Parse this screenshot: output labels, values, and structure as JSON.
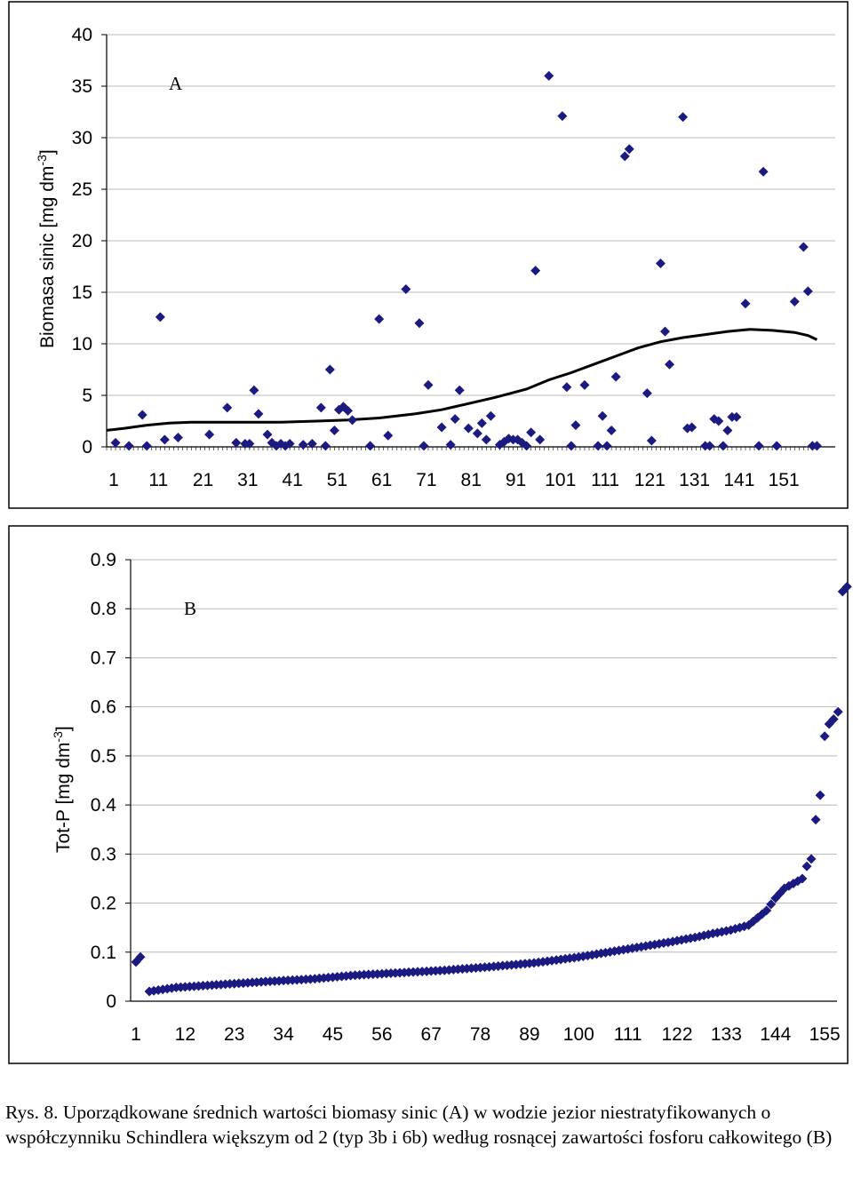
{
  "chart_data": [
    {
      "panel": "A",
      "type": "scatter",
      "ylabel": "Biomasa sinic [mg dm",
      "ylabel_sup": "-3",
      "ylabel_end": "]",
      "ylim": [
        0,
        40
      ],
      "yticks": [
        0,
        5,
        10,
        15,
        20,
        25,
        30,
        35,
        40
      ],
      "xlim": [
        1,
        157
      ],
      "xticks": [
        1,
        11,
        21,
        31,
        41,
        51,
        61,
        71,
        81,
        91,
        101,
        111,
        121,
        131,
        141,
        151
      ],
      "grid": true,
      "point_color": "#1a1a80",
      "line_color": "#000000",
      "points": [
        [
          3,
          0.4
        ],
        [
          6,
          0.1
        ],
        [
          9,
          3.1
        ],
        [
          10,
          0.1
        ],
        [
          13,
          12.6
        ],
        [
          14,
          0.7
        ],
        [
          17,
          0.9
        ],
        [
          24,
          1.2
        ],
        [
          28,
          3.8
        ],
        [
          30,
          0.4
        ],
        [
          32,
          0.3
        ],
        [
          33,
          0.3
        ],
        [
          34,
          5.5
        ],
        [
          35,
          3.2
        ],
        [
          37,
          1.2
        ],
        [
          38,
          0.4
        ],
        [
          39,
          0.1
        ],
        [
          40,
          0.3
        ],
        [
          41,
          0.1
        ],
        [
          42,
          0.3
        ],
        [
          45,
          0.2
        ],
        [
          47,
          0.3
        ],
        [
          49,
          3.8
        ],
        [
          50,
          0.1
        ],
        [
          51,
          7.5
        ],
        [
          52,
          1.6
        ],
        [
          53,
          3.6
        ],
        [
          54,
          3.9
        ],
        [
          55,
          3.5
        ],
        [
          56,
          2.6
        ],
        [
          60,
          0.1
        ],
        [
          62,
          12.4
        ],
        [
          64,
          1.1
        ],
        [
          68,
          15.3
        ],
        [
          71,
          12.0
        ],
        [
          72,
          0.1
        ],
        [
          73,
          6.0
        ],
        [
          76,
          1.9
        ],
        [
          78,
          0.2
        ],
        [
          79,
          2.7
        ],
        [
          80,
          5.5
        ],
        [
          82,
          1.8
        ],
        [
          84,
          1.3
        ],
        [
          85,
          2.3
        ],
        [
          86,
          0.7
        ],
        [
          87,
          3.0
        ],
        [
          89,
          0.2
        ],
        [
          90,
          0.5
        ],
        [
          91,
          0.8
        ],
        [
          92,
          0.7
        ],
        [
          93,
          0.7
        ],
        [
          94,
          0.4
        ],
        [
          95,
          0.1
        ],
        [
          96,
          1.4
        ],
        [
          97,
          17.1
        ],
        [
          98,
          0.7
        ],
        [
          100,
          36.0
        ],
        [
          103,
          32.1
        ],
        [
          104,
          5.8
        ],
        [
          105,
          0.1
        ],
        [
          106,
          2.1
        ],
        [
          108,
          6.0
        ],
        [
          111,
          0.1
        ],
        [
          112,
          3.0
        ],
        [
          113,
          0.1
        ],
        [
          114,
          1.6
        ],
        [
          115,
          6.8
        ],
        [
          117,
          28.2
        ],
        [
          118,
          28.9
        ],
        [
          122,
          5.2
        ],
        [
          123,
          0.6
        ],
        [
          125,
          17.8
        ],
        [
          126,
          11.2
        ],
        [
          127,
          8.0
        ],
        [
          130,
          32.0
        ],
        [
          131,
          1.8
        ],
        [
          132,
          1.9
        ],
        [
          135,
          0.1
        ],
        [
          136,
          0.1
        ],
        [
          137,
          2.7
        ],
        [
          138,
          2.5
        ],
        [
          139,
          0.1
        ],
        [
          140,
          1.6
        ],
        [
          141,
          2.9
        ],
        [
          142,
          2.9
        ],
        [
          144,
          13.9
        ],
        [
          147,
          0.1
        ],
        [
          148,
          26.7
        ],
        [
          151,
          0.1
        ],
        [
          155,
          14.1
        ],
        [
          157,
          19.4
        ],
        [
          158,
          15.1
        ],
        [
          159,
          0.1
        ],
        [
          160,
          0.1
        ]
      ],
      "trend": [
        [
          1,
          1.6
        ],
        [
          5,
          1.8
        ],
        [
          10,
          2.1
        ],
        [
          15,
          2.3
        ],
        [
          20,
          2.4
        ],
        [
          30,
          2.4
        ],
        [
          40,
          2.4
        ],
        [
          48,
          2.5
        ],
        [
          55,
          2.6
        ],
        [
          62,
          2.8
        ],
        [
          70,
          3.2
        ],
        [
          76,
          3.6
        ],
        [
          82,
          4.2
        ],
        [
          88,
          4.8
        ],
        [
          95,
          5.6
        ],
        [
          100,
          6.5
        ],
        [
          105,
          7.2
        ],
        [
          110,
          8.0
        ],
        [
          115,
          8.8
        ],
        [
          120,
          9.6
        ],
        [
          125,
          10.2
        ],
        [
          130,
          10.6
        ],
        [
          135,
          10.9
        ],
        [
          140,
          11.2
        ],
        [
          145,
          11.4
        ],
        [
          150,
          11.3
        ],
        [
          155,
          11.1
        ],
        [
          158,
          10.8
        ],
        [
          160,
          10.4
        ]
      ]
    },
    {
      "panel": "B",
      "type": "scatter",
      "ylabel": "Tot-P [mg dm",
      "ylabel_sup": "-3",
      "ylabel_end": "]",
      "ylim": [
        0,
        0.9
      ],
      "yticks": [
        0,
        0.1,
        0.2,
        0.3,
        0.4,
        0.5,
        0.6,
        0.7,
        0.8,
        0.9
      ],
      "ytick_labels": [
        "0",
        "0.1",
        "0.2",
        "0.3",
        "0.4",
        "0.5",
        "0.6",
        "0.7",
        "0.8",
        "0.9"
      ],
      "xlim": [
        1,
        155
      ],
      "xticks": [
        1,
        12,
        23,
        34,
        45,
        56,
        67,
        78,
        89,
        100,
        111,
        122,
        133,
        144,
        155
      ],
      "grid": true,
      "point_color": "#1a1a80",
      "curve_anchors": [
        [
          1,
          0.08
        ],
        [
          2,
          0.09
        ],
        [
          4,
          0.02
        ],
        [
          10,
          0.028
        ],
        [
          20,
          0.034
        ],
        [
          30,
          0.04
        ],
        [
          40,
          0.045
        ],
        [
          50,
          0.053
        ],
        [
          60,
          0.058
        ],
        [
          70,
          0.063
        ],
        [
          80,
          0.07
        ],
        [
          90,
          0.078
        ],
        [
          100,
          0.09
        ],
        [
          110,
          0.105
        ],
        [
          120,
          0.12
        ],
        [
          126,
          0.13
        ],
        [
          130,
          0.138
        ],
        [
          134,
          0.145
        ],
        [
          138,
          0.155
        ],
        [
          140,
          0.17
        ],
        [
          142,
          0.185
        ],
        [
          144,
          0.21
        ],
        [
          146,
          0.23
        ],
        [
          148,
          0.24
        ],
        [
          150,
          0.25
        ],
        [
          151,
          0.275
        ],
        [
          152,
          0.29
        ],
        [
          153,
          0.37
        ],
        [
          154,
          0.42
        ],
        [
          155,
          0.54
        ],
        [
          156,
          0.565
        ],
        [
          157,
          0.575
        ],
        [
          158,
          0.59
        ],
        [
          159,
          0.835
        ],
        [
          160,
          0.845
        ]
      ]
    }
  ],
  "caption": "Rys. 8. Uporządkowane średnich wartości biomasy sinic (A) w wodzie jezior niestratyfikowanych o współczynniku Schindlera większym od 2 (typ  3b i 6b) według rosnącej zawartości fosforu całkowitego (B)"
}
